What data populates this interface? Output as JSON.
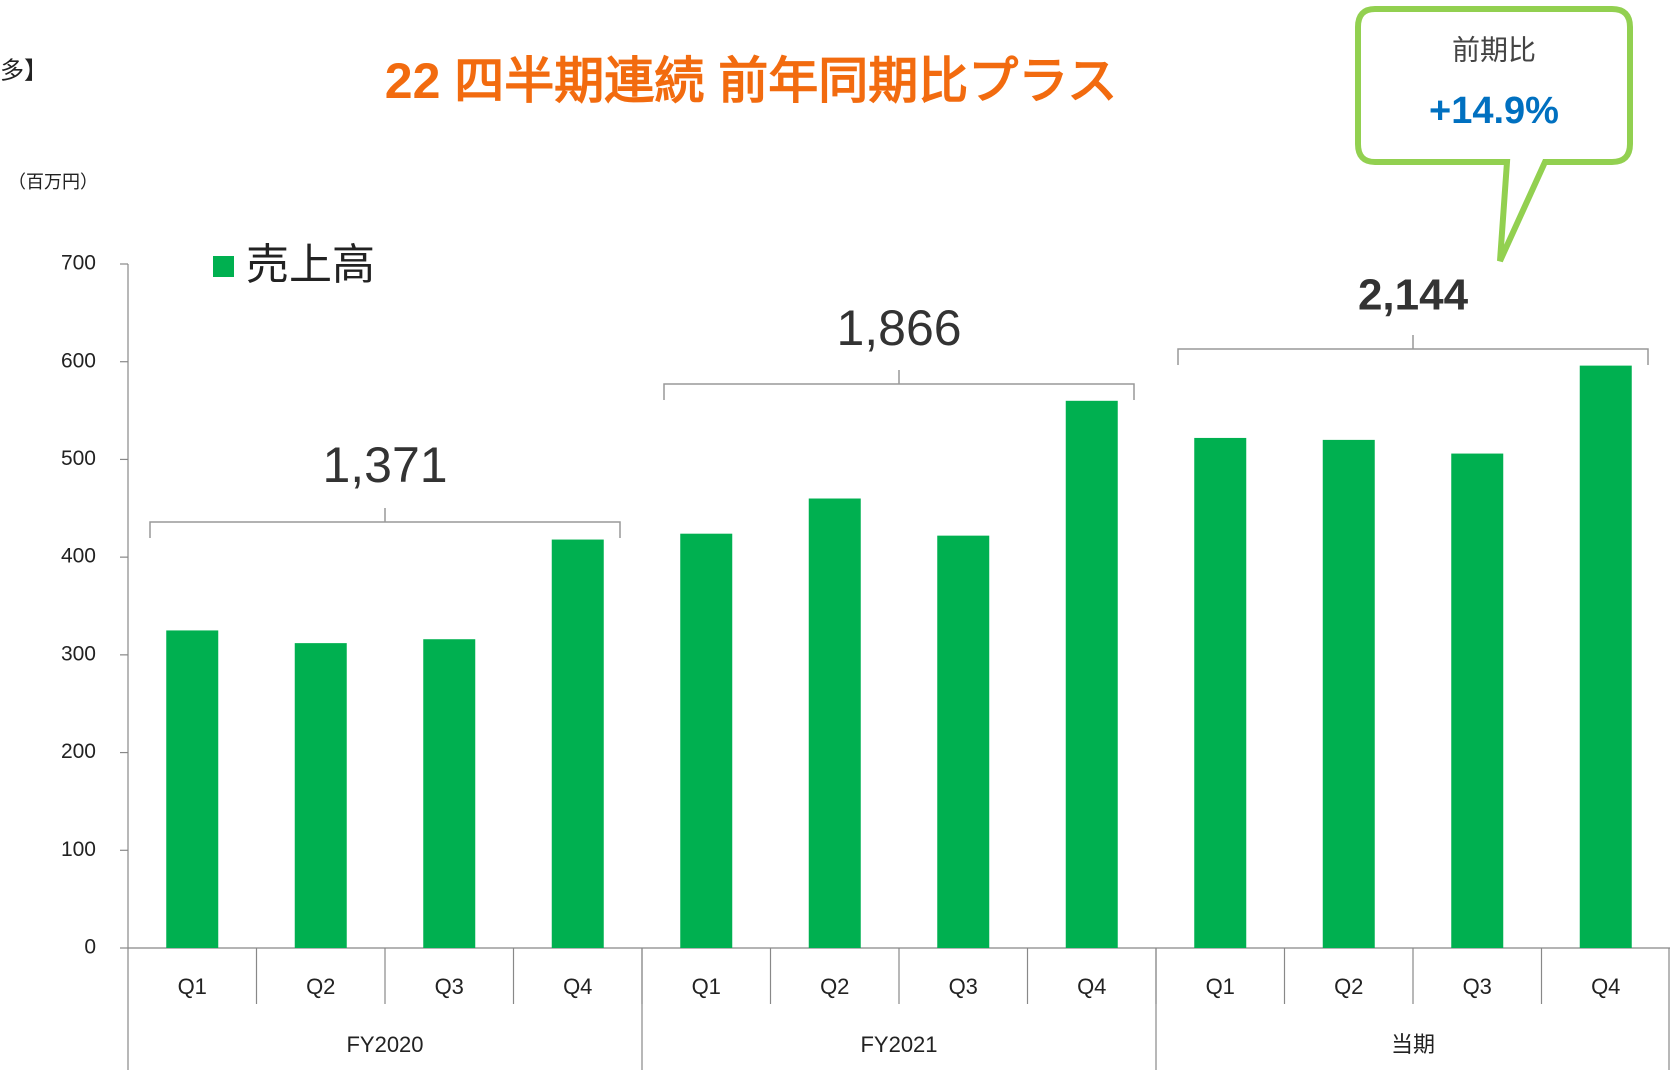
{
  "chart_data": {
    "type": "bar",
    "headline": "22 四半期連続 前年同期比プラス",
    "note": "多】",
    "unit_label": "（百万円）",
    "callout": {
      "title": "前期比",
      "value": "+14.9%"
    },
    "categories": [
      "Q1",
      "Q2",
      "Q3",
      "Q4",
      "Q1",
      "Q2",
      "Q3",
      "Q4",
      "Q1",
      "Q2",
      "Q3",
      "Q4"
    ],
    "groups": [
      {
        "name": "FY2020",
        "size": 4,
        "total": 1371,
        "total_label": "1,371"
      },
      {
        "name": "FY2021",
        "size": 4,
        "total": 1866,
        "total_label": "1,866"
      },
      {
        "name": "当期",
        "size": 4,
        "total": 2144,
        "total_label": "2,144"
      }
    ],
    "series": [
      {
        "name": "売上高",
        "color": "#00b050",
        "values": [
          325,
          312,
          316,
          418,
          424,
          460,
          422,
          560,
          522,
          520,
          506,
          596
        ]
      }
    ],
    "ylim": [
      0,
      700
    ],
    "yticks": [
      0,
      100,
      200,
      300,
      400,
      500,
      600,
      700
    ]
  }
}
